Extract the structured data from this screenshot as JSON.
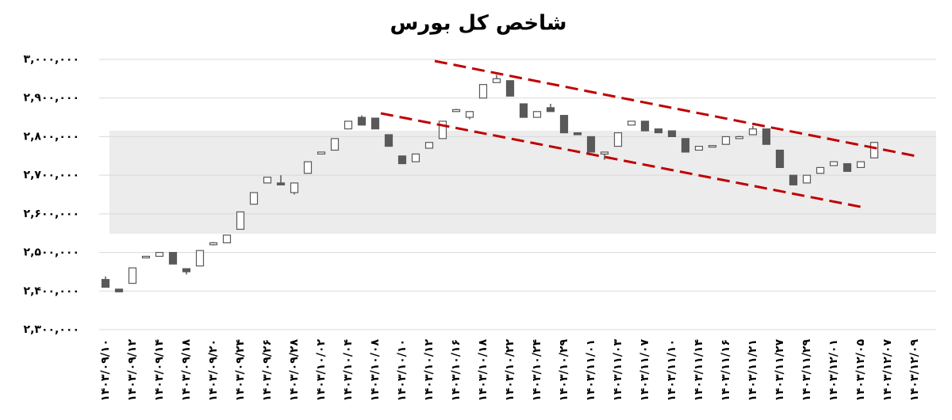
{
  "chart_data": {
    "type": "candlestick",
    "title": "شاخص کل بورس",
    "categories": [
      "۱۴۰۳/۰۹/۱۰",
      null,
      "۱۴۰۳/۰۹/۱۲",
      null,
      "۱۴۰۳/۰۹/۱۴",
      null,
      "۱۴۰۳/۰۹/۱۸",
      null,
      "۱۴۰۳/۰۹/۲۰",
      null,
      "۱۴۰۳/۰۹/۲۴",
      null,
      "۱۴۰۳/۰۹/۲۶",
      null,
      "۱۴۰۳/۰۹/۲۸",
      null,
      "۱۴۰۳/۱۰/۰۲",
      null,
      "۱۴۰۳/۱۰/۰۴",
      null,
      "۱۴۰۳/۱۰/۰۸",
      null,
      "۱۴۰۳/۱۰/۱۰",
      null,
      "۱۴۰۳/۱۰/۱۲",
      null,
      "۱۴۰۳/۱۰/۱۶",
      null,
      "۱۴۰۳/۱۰/۱۸",
      null,
      "۱۴۰۳/۱۰/۲۲",
      null,
      "۱۴۰۳/۱۰/۲۴",
      null,
      "۱۴۰۳/۱۰/۲۹",
      null,
      "۱۴۰۳/۱۱/۰۱",
      null,
      "۱۴۰۳/۱۱/۰۳",
      null,
      "۱۴۰۳/۱۱/۰۷",
      null,
      "۱۴۰۳/۱۱/۱۰",
      null,
      "۱۴۰۳/۱۱/۱۴",
      null,
      "۱۴۰۳/۱۱/۱۶",
      null,
      "۱۴۰۳/۱۱/۲۱",
      null,
      "۱۴۰۳/۱۱/۲۷",
      null,
      "۱۴۰۳/۱۱/۲۹",
      null,
      "۱۴۰۳/۱۲/۰۱",
      null,
      "۱۴۰۳/۱۲/۰۵",
      null,
      "۱۴۰۳/۱۲/۰۷",
      null,
      "۱۴۰۳/۱۲/۰۹"
    ],
    "open": [
      2430000,
      2405000,
      2420000,
      2487000,
      2490000,
      2500000,
      2458000,
      2465000,
      2520000,
      2525000,
      2560000,
      2625000,
      2680000,
      2680000,
      2655000,
      2705000,
      2755000,
      2765000,
      2820000,
      2850000,
      2848000,
      2805000,
      2750000,
      2735000,
      2770000,
      2795000,
      2865000,
      2850000,
      2900000,
      2940000,
      2945000,
      2885000,
      2850000,
      2875000,
      2855000,
      2810000,
      2800000,
      2755000,
      2775000,
      2830000,
      2840000,
      2820000,
      2815000,
      2795000,
      2765000,
      2775000,
      2780000,
      2795000,
      2805000,
      2820000,
      2765000,
      2700000,
      2680000,
      2705000,
      2725000,
      2730000,
      2720000,
      2745000,
      null,
      null,
      null
    ],
    "high": [
      2438000,
      2405000,
      2460000,
      2490000,
      2500000,
      2500000,
      2458000,
      2505000,
      2527000,
      2545000,
      2605000,
      2655000,
      2695000,
      2700000,
      2680000,
      2735000,
      2760000,
      2795000,
      2840000,
      2855000,
      2848000,
      2805000,
      2750000,
      2755000,
      2785000,
      2840000,
      2872000,
      2865000,
      2935000,
      2960000,
      2945000,
      2885000,
      2865000,
      2885000,
      2855000,
      2810000,
      2800000,
      2760000,
      2810000,
      2840000,
      2840000,
      2820000,
      2815000,
      2795000,
      2775000,
      2777000,
      2800000,
      2802000,
      2828000,
      2820000,
      2765000,
      2700000,
      2700000,
      2720000,
      2735000,
      2730000,
      2735000,
      2785000,
      null,
      null,
      null
    ],
    "low": [
      2410000,
      2398000,
      2420000,
      2487000,
      2490000,
      2470000,
      2443000,
      2465000,
      2518000,
      2525000,
      2560000,
      2625000,
      2680000,
      2675000,
      2650000,
      2705000,
      2755000,
      2765000,
      2820000,
      2830000,
      2820000,
      2775000,
      2730000,
      2735000,
      2770000,
      2795000,
      2865000,
      2845000,
      2900000,
      2940000,
      2905000,
      2850000,
      2850000,
      2865000,
      2810000,
      2805000,
      2760000,
      2740000,
      2775000,
      2830000,
      2815000,
      2810000,
      2800000,
      2760000,
      2765000,
      2775000,
      2780000,
      2795000,
      2805000,
      2780000,
      2720000,
      2675000,
      2680000,
      2705000,
      2725000,
      2710000,
      2720000,
      2745000,
      null,
      null,
      null
    ],
    "close": [
      2410000,
      2398000,
      2460000,
      2490000,
      2500000,
      2470000,
      2450000,
      2505000,
      2525000,
      2545000,
      2605000,
      2655000,
      2695000,
      2675000,
      2680000,
      2735000,
      2760000,
      2795000,
      2840000,
      2830000,
      2820000,
      2775000,
      2730000,
      2755000,
      2785000,
      2840000,
      2870000,
      2865000,
      2935000,
      2950000,
      2905000,
      2850000,
      2865000,
      2865000,
      2810000,
      2805000,
      2760000,
      2760000,
      2810000,
      2840000,
      2815000,
      2810000,
      2800000,
      2760000,
      2775000,
      2777000,
      2800000,
      2800000,
      2820000,
      2780000,
      2720000,
      2675000,
      2700000,
      2720000,
      2735000,
      2710000,
      2735000,
      2785000,
      null,
      null,
      null
    ],
    "up_color": "#ffffff",
    "down_color": "#595959",
    "line_color": "#595959",
    "ylim": [
      2300000,
      3000000
    ],
    "yticks": [
      {
        "value": 2300000,
        "label": "۲,۳۰۰,۰۰۰"
      },
      {
        "value": 2400000,
        "label": "۲,۴۰۰,۰۰۰"
      },
      {
        "value": 2500000,
        "label": "۲,۵۰۰,۰۰۰"
      },
      {
        "value": 2600000,
        "label": "۲,۶۰۰,۰۰۰"
      },
      {
        "value": 2700000,
        "label": "۲,۷۰۰,۰۰۰"
      },
      {
        "value": 2800000,
        "label": "۲,۸۰۰,۰۰۰"
      },
      {
        "value": 2900000,
        "label": "۲,۹۰۰,۰۰۰"
      },
      {
        "value": 3000000,
        "label": "۳,۰۰۰,۰۰۰"
      }
    ],
    "grid": true
  }
}
